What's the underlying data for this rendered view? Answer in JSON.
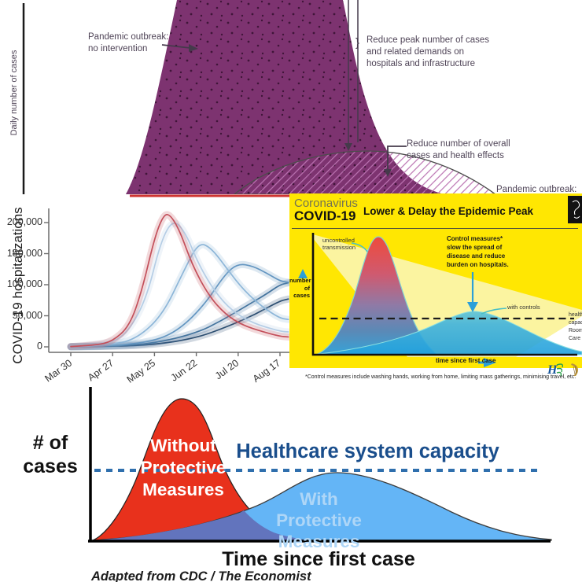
{
  "panels": {
    "cdc": {
      "ylabel": "Daily number of cases",
      "no_intervention": [
        "Pandemic outbreak:",
        "no intervention"
      ],
      "brace": "}",
      "reduce_peak": [
        "Reduce peak number of cases",
        "and related demands on",
        "hospitals and infrastructure"
      ],
      "reduce_overall": [
        "Reduce number of overall",
        "cases and health effects"
      ],
      "cut_label": "Pandemic outbreak:"
    },
    "hosp": {
      "ylabel": "COVID-19 hospitalizations",
      "yticks": [
        "200,000",
        "150,000",
        "100,000",
        "50,000",
        "0"
      ],
      "xticks": [
        "Mar 30",
        "Apr 27",
        "May 25",
        "Jun 22",
        "Jul 20",
        "Aug 17"
      ]
    },
    "hse": {
      "brand_top": "Coronavirus",
      "brand_bottom": "COVID-19",
      "title": "Lower & Delay the Epidemic Peak",
      "uncontrolled": [
        "uncontrolled",
        "transmission"
      ],
      "control_measures": [
        "Control measures*",
        "slow the spread of",
        "disease and reduce",
        "burden on hospitals."
      ],
      "with_controls": "with controls",
      "ylabel_lines": [
        "number",
        "of",
        "cases"
      ],
      "xlabel": "time since first case",
      "capacity_clipped": [
        "healthc",
        "capacit",
        "Room v",
        "Care U"
      ],
      "footnote": "*Control measures include washing hands, working from home, limiting mass gatherings, minimising travel, etc.",
      "hse_logo_text": "H",
      "colors": {
        "background": "#ffe702",
        "pale_ray": "#fbf4a0",
        "bell_red": "#ef4b3c",
        "curve_blue": "#29a7e0",
        "teal_outline": "#7fd2d4"
      }
    },
    "flatten": {
      "ylabel": [
        "# of",
        "cases"
      ],
      "without": [
        "Without",
        "Protective",
        "Measures"
      ],
      "capacity": "Healthcare system capacity",
      "with_measures": [
        "With Protective",
        "Measures"
      ],
      "xlabel": "Time since first case",
      "caption": "Adapted from CDC / The Economist",
      "colors": {
        "red": "#e8311c",
        "blue": "#64b5f6",
        "overlap": "#6274bd",
        "capacity_text": "#1a4e8c",
        "dash": "#2f6fad"
      }
    }
  },
  "chart_data": [
    {
      "id": "cdc_flatten_diagram",
      "type": "area",
      "title": "",
      "ylabel": "Daily number of cases",
      "xlabel": "",
      "grid": false,
      "curves": [
        {
          "label": "Pandemic outbreak: no intervention",
          "shape": "tall bell (peak cropped at top)",
          "fill": "#7d3370",
          "texture": "dark speckle dots"
        },
        {
          "label": "Pandemic outbreak: with intervention (flattened)",
          "shape": "low broad dome",
          "fill": "diagonal pink hatching on white",
          "outline": "#4c4c4c"
        }
      ],
      "annotations": [
        "Reduce peak number of cases and related demands on hospitals and infrastructure",
        "Reduce number of overall cases and health effects"
      ]
    },
    {
      "id": "hospitalizations",
      "type": "line",
      "title": "",
      "ylabel": "COVID-19 hospitalizations",
      "xlabel": "",
      "x_tick_labels": [
        "Mar 30",
        "Apr 27",
        "May 25",
        "Jun 22",
        "Jul 20",
        "Aug 17"
      ],
      "x_unit": "tick index (0 = Mar 30, 1 = Apr 27, 2 = May 25, 3 = Jun 22, 4 = Jul 20, 5 = Aug 17)",
      "ylim": [
        0,
        230000
      ],
      "yticks": [
        0,
        50000,
        100000,
        150000,
        200000
      ],
      "grid": false,
      "legend": "none",
      "note": "six scenario curves with shaded confidence bands; values estimated from axis",
      "series": [
        {
          "name": "latest/slowest peak (dark navy, still rising)",
          "color": "#2c4e71",
          "points": [
            [
              0,
              100
            ],
            [
              1,
              600
            ],
            [
              2,
              3500
            ],
            [
              3,
              14000
            ],
            [
              3.8,
              34000
            ],
            [
              4.4,
              52000
            ],
            [
              5,
              74000
            ],
            [
              5.2,
              77000
            ]
          ]
        },
        {
          "name": "late peak (dark blue, still rising)",
          "color": "#44749e",
          "points": [
            [
              0,
              150
            ],
            [
              1,
              1000
            ],
            [
              2,
              5500
            ],
            [
              3,
              22000
            ],
            [
              3.6,
              42000
            ],
            [
              4.2,
              66000
            ],
            [
              4.7,
              86000
            ],
            [
              5,
              100000
            ],
            [
              5.2,
              103000
            ]
          ]
        },
        {
          "name": "peak ~135,000 around Jul 27 (medium blue)",
          "color": "#6496c1",
          "points": [
            [
              0,
              200
            ],
            [
              1,
              1500
            ],
            [
              2,
              9000
            ],
            [
              2.6,
              28000
            ],
            [
              3.2,
              68000
            ],
            [
              3.7,
              118000
            ],
            [
              4.0,
              134000
            ],
            [
              4.35,
              130000
            ],
            [
              4.7,
              118000
            ],
            [
              5,
              106000
            ],
            [
              5.2,
              104000
            ]
          ]
        },
        {
          "name": "peak ~170,000 around Jul 1 (light blue)",
          "color": "#8db6d8",
          "points": [
            [
              0,
              300
            ],
            [
              1,
              3000
            ],
            [
              1.6,
              14000
            ],
            [
              2.2,
              52000
            ],
            [
              2.7,
              122000
            ],
            [
              3.05,
              168000
            ],
            [
              3.35,
              160000
            ],
            [
              3.75,
              124000
            ],
            [
              4.15,
              90000
            ],
            [
              4.6,
              63000
            ],
            [
              5,
              46000
            ],
            [
              5.2,
              44000
            ]
          ]
        },
        {
          "name": "peak ~206,000 mid June (palest blue)",
          "color": "#b5cde5",
          "points": [
            [
              0,
              400
            ],
            [
              0.8,
              4000
            ],
            [
              1.3,
              17000
            ],
            [
              1.8,
              75000
            ],
            [
              2.15,
              170000
            ],
            [
              2.45,
              206000
            ],
            [
              2.75,
              183000
            ],
            [
              3.05,
              133000
            ],
            [
              3.45,
              88000
            ],
            [
              3.85,
              58000
            ],
            [
              4.35,
              38000
            ],
            [
              5,
              25000
            ],
            [
              5.2,
              24000
            ]
          ]
        },
        {
          "name": "peak ~215,000 early June (red)",
          "color": "#c3505b",
          "points": [
            [
              0,
              500
            ],
            [
              0.6,
              2500
            ],
            [
              1,
              9000
            ],
            [
              1.4,
              33000
            ],
            [
              1.7,
              90000
            ],
            [
              2.0,
              175000
            ],
            [
              2.2,
              210000
            ],
            [
              2.35,
              215000
            ],
            [
              2.6,
              188000
            ],
            [
              2.9,
              132000
            ],
            [
              3.3,
              82000
            ],
            [
              3.7,
              52000
            ],
            [
              4.1,
              35000
            ],
            [
              4.6,
              24000
            ],
            [
              5,
              17000
            ],
            [
              5.2,
              16000
            ]
          ]
        }
      ]
    },
    {
      "id": "hse_lower_delay",
      "type": "area",
      "title": "Lower & Delay the Epidemic Peak",
      "ylabel": "number of cases",
      "xlabel": "time since first case",
      "grid": false,
      "curves": [
        {
          "label": "uncontrolled transmission",
          "shape": "tall narrow bell",
          "fill": "red fading to blue"
        },
        {
          "label": "with controls",
          "shape": "low broad dome just under capacity line",
          "fill": "#29a7e0"
        }
      ],
      "capacity_line": {
        "style": "black dashed",
        "label_clipped": "healthc / capacit / Room v / Care U"
      },
      "annotations": [
        "Control measures* slow the spread of disease and reduce burden on hospitals."
      ]
    },
    {
      "id": "flatten_the_curve",
      "type": "area",
      "title": "",
      "ylabel": "# of cases",
      "xlabel": "Time since first case",
      "grid": false,
      "curves": [
        {
          "label": "Without Protective Measures",
          "shape": "tall bell, peak above capacity line",
          "fill": "#e8311c"
        },
        {
          "label": "With Protective Measures",
          "shape": "broad dome, peak just below capacity line",
          "fill": "#64b5f6"
        },
        {
          "label": "overlap region",
          "fill": "#6274bd"
        }
      ],
      "capacity_line": {
        "label": "Healthcare system capacity",
        "style": "blue dashed",
        "color": "#2f6fad"
      },
      "caption": "Adapted from CDC / The Economist"
    }
  ]
}
